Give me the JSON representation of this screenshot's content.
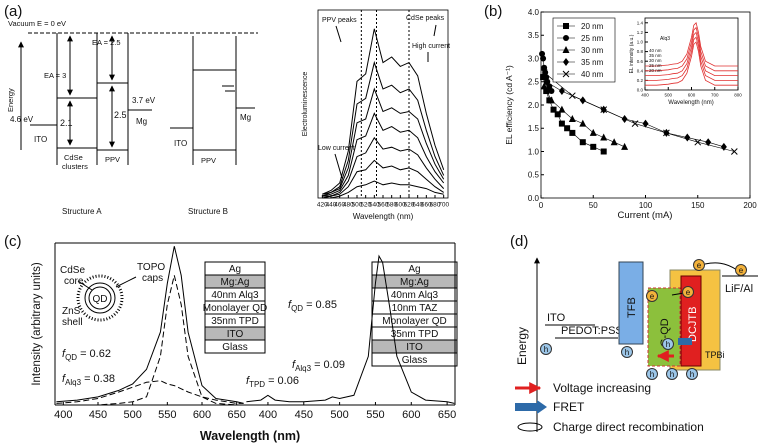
{
  "figure_labels": [
    "(a)",
    "(b)",
    "(c)",
    "(d)"
  ],
  "structure_a": {
    "energy": "Energy",
    "vacuum": "Vacuum E = 0 eV",
    "ea_cdse": "EA = 3",
    "ea_ppv": "EA = 2.5",
    "ito": "ITO",
    "ito_level": "4.6 eV",
    "gap_cdse": "2.1",
    "gap_ppv": "2.5",
    "mg": "Mg",
    "mg_level": "3.7 eV",
    "cdse": [
      "CdSe",
      "clusters"
    ],
    "ppv": "PPV",
    "caption": "Structure A"
  },
  "structure_b": {
    "ito": "ITO",
    "ppv": "PPV",
    "mg": "Mg",
    "caption": "Structure B"
  },
  "qd_schematic": {
    "core": [
      "CdSe",
      "core"
    ],
    "caps": [
      "TOPO",
      "caps"
    ],
    "shell": [
      "ZnS",
      "shell"
    ],
    "label": "QD"
  },
  "device_stacks": [
    [
      "Ag",
      "Mg:Ag",
      "40nm Alq3",
      "Monolayer QD",
      "35nm TPD",
      "ITO",
      "Glass"
    ],
    [
      "Ag",
      "Mg:Ag",
      "40nm Alq3",
      "10nm TAZ",
      "Monolayer QD",
      "35nm TPD",
      "ITO",
      "Glass"
    ]
  ],
  "panel_d": {
    "energy": "Energy",
    "ito": "ITO",
    "pedot": "PEDOT:PSS",
    "tfb": "TFB",
    "gqd": "G-QD",
    "dcjtb": "DCJTB",
    "tpbi": "TPBi",
    "lif": "LiF/Al",
    "electron": "e",
    "hole": "h",
    "legend": [
      "Voltage increasing",
      "FRET",
      "Charge direct recombination"
    ]
  },
  "chart_data": [
    {
      "type": "line",
      "x_label": "Wavelength (nm)",
      "y_label": "Electroluminescence",
      "xlim": [
        410,
        710
      ],
      "ylim": [
        0,
        100
      ],
      "xticks": [
        420,
        440,
        460,
        480,
        500,
        520,
        540,
        560,
        580,
        600,
        620,
        640,
        660,
        680,
        700
      ],
      "reference_lines": [
        510,
        545,
        620
      ],
      "annotations": [
        {
          "text": "PPV peaks"
        },
        {
          "text": "CdSe peaks"
        },
        {
          "text": "High current"
        },
        {
          "text": "Low current"
        }
      ],
      "x": [
        420,
        440,
        460,
        480,
        500,
        520,
        540,
        560,
        580,
        600,
        620,
        640,
        660,
        680,
        700
      ],
      "series": [
        {
          "color": "#000000",
          "values": [
            2,
            4,
            8,
            25,
            62,
            66,
            90,
            72,
            75,
            70,
            72,
            65,
            45,
            28,
            15
          ]
        },
        {
          "color": "#000000",
          "values": [
            2,
            3,
            6,
            20,
            50,
            53,
            72,
            58,
            60,
            56,
            58,
            52,
            36,
            22,
            12
          ]
        },
        {
          "color": "#000000",
          "values": [
            1,
            3,
            5,
            16,
            40,
            42,
            58,
            46,
            48,
            45,
            46,
            42,
            29,
            18,
            10
          ]
        },
        {
          "color": "#000000",
          "values": [
            1,
            2,
            4,
            12,
            31,
            33,
            45,
            36,
            38,
            35,
            36,
            32,
            22,
            14,
            8
          ]
        },
        {
          "color": "#000000",
          "values": [
            1,
            1,
            3,
            9,
            22,
            24,
            32,
            26,
            27,
            25,
            26,
            23,
            16,
            10,
            5
          ]
        },
        {
          "color": "#000000",
          "values": [
            0,
            1,
            2,
            6,
            14,
            15,
            20,
            16,
            17,
            15,
            16,
            14,
            10,
            6,
            3
          ]
        },
        {
          "color": "#000000",
          "values": [
            0,
            0,
            1,
            3,
            6,
            7,
            9,
            7,
            8,
            7,
            7,
            6,
            5,
            3,
            2
          ]
        }
      ]
    },
    {
      "type": "scatter",
      "x_label": "Current (mA)",
      "y_label": "EL efficiency (cd A⁻¹)",
      "xlim": [
        0,
        200
      ],
      "ylim": [
        0,
        4
      ],
      "xticks": [
        0,
        50,
        100,
        150,
        200
      ],
      "yticks": [
        {
          "value": 0,
          "label": "0.0"
        },
        0.5,
        {
          "value": 1,
          "label": "1.0"
        },
        1.5,
        {
          "value": 2,
          "label": "2.0"
        },
        2.5,
        {
          "value": 3,
          "label": "3.0"
        },
        3.5,
        {
          "value": 4,
          "label": "4.0"
        }
      ],
      "legend": "upper left",
      "connect": true,
      "series": [
        {
          "name": "20 nm",
          "marker": "square",
          "color": "#000000",
          "x": [
            2,
            5,
            8,
            12,
            16,
            20,
            25,
            30,
            40,
            50,
            60
          ],
          "values": [
            2.6,
            2.3,
            2.1,
            1.9,
            1.8,
            1.6,
            1.5,
            1.4,
            1.2,
            1.1,
            1.0
          ]
        },
        {
          "name": "25 nm",
          "marker": "circle",
          "color": "#000000",
          "x": [
            1,
            2,
            3,
            4,
            5,
            6,
            8,
            10
          ],
          "values": [
            3.1,
            3.0,
            2.8,
            2.7,
            2.6,
            2.5,
            2.4,
            2.3
          ]
        },
        {
          "name": "30 nm",
          "marker": "triangle",
          "color": "#000000",
          "x": [
            3,
            10,
            20,
            30,
            40,
            50,
            60,
            70,
            80
          ],
          "values": [
            2.4,
            2.1,
            1.9,
            1.7,
            1.6,
            1.4,
            1.3,
            1.2,
            1.1
          ]
        },
        {
          "name": "35 nm",
          "marker": "diamond",
          "color": "#000000",
          "x": [
            5,
            20,
            40,
            60,
            80,
            100,
            120,
            140,
            160,
            175
          ],
          "values": [
            2.5,
            2.3,
            2.1,
            1.9,
            1.7,
            1.6,
            1.4,
            1.3,
            1.2,
            1.1
          ]
        },
        {
          "name": "40 nm",
          "marker": "cross",
          "color": "#000000",
          "x": [
            3,
            30,
            60,
            90,
            120,
            150,
            185
          ],
          "values": [
            2.7,
            2.2,
            1.9,
            1.6,
            1.4,
            1.2,
            1.0
          ]
        }
      ]
    },
    {
      "type": "line",
      "x_label": "Wavelength (nm)",
      "y_label": "EL intensity (a.u.)",
      "xlim": [
        400,
        800
      ],
      "ylim": [
        0,
        1.5
      ],
      "xticks": [
        400,
        500,
        600,
        700,
        800
      ],
      "yticks": [
        {
          "value": 0,
          "label": "0.0"
        },
        0.2,
        0.4,
        0.6,
        0.8,
        {
          "value": 1,
          "label": "1.0"
        },
        1.2,
        1.4
      ],
      "legend": "left",
      "annotations": [
        {
          "text": "Alq3"
        }
      ],
      "x": [
        400,
        450,
        500,
        520,
        540,
        560,
        580,
        600,
        610,
        620,
        630,
        640,
        660,
        700,
        750,
        800
      ],
      "series": [
        {
          "name": "40 nm",
          "color": "#e03030",
          "values": [
            0.5,
            0.5,
            0.52,
            0.54,
            0.55,
            0.6,
            0.75,
            1.1,
            1.35,
            1.4,
            1.2,
            0.9,
            0.6,
            0.5,
            0.5,
            0.5
          ]
        },
        {
          "name": "35 nm",
          "color": "#e03030",
          "values": [
            0.4,
            0.4,
            0.42,
            0.44,
            0.45,
            0.5,
            0.65,
            1.0,
            1.25,
            1.3,
            1.1,
            0.8,
            0.5,
            0.4,
            0.4,
            0.4
          ]
        },
        {
          "name": "30 nm",
          "color": "#e03030",
          "values": [
            0.3,
            0.3,
            0.32,
            0.34,
            0.35,
            0.4,
            0.55,
            0.9,
            1.15,
            1.2,
            1.0,
            0.7,
            0.4,
            0.3,
            0.3,
            0.3
          ]
        },
        {
          "name": "25 nm",
          "color": "#e03030",
          "values": [
            0.2,
            0.2,
            0.22,
            0.24,
            0.25,
            0.3,
            0.45,
            0.8,
            1.05,
            1.1,
            0.9,
            0.6,
            0.3,
            0.2,
            0.2,
            0.2
          ]
        },
        {
          "name": "20 nm",
          "color": "#e03030",
          "values": [
            0.1,
            0.1,
            0.12,
            0.14,
            0.15,
            0.2,
            0.35,
            0.7,
            0.95,
            1.0,
            0.8,
            0.5,
            0.2,
            0.1,
            0.1,
            0.1
          ]
        }
      ]
    },
    {
      "type": "line",
      "x_label": "Wavelength (nm)",
      "y_label": "Intensity (arbitrary units)",
      "xlim": [
        388,
        662
      ],
      "ylim": [
        0,
        100
      ],
      "xticks": [
        400,
        450,
        500,
        550,
        600,
        650
      ],
      "annotations": [
        {
          "symbol": "f",
          "subscript": "QD",
          "text": "= 0.62"
        },
        {
          "symbol": "f",
          "subscript": "Alq3",
          "text": "= 0.38"
        }
      ],
      "x": [
        390,
        420,
        450,
        480,
        500,
        520,
        540,
        550,
        560,
        570,
        580,
        600,
        620,
        650,
        660
      ],
      "series": [
        {
          "color": "#000000",
          "dash": "solid",
          "values": [
            2,
            3,
            5,
            9,
            13,
            22,
            45,
            75,
            98,
            80,
            45,
            12,
            4,
            2,
            1
          ]
        },
        {
          "color": "#000000",
          "dash": "dashed",
          "values": [
            0,
            0,
            0,
            1,
            2,
            5,
            30,
            62,
            80,
            62,
            30,
            5,
            1,
            0,
            0
          ]
        },
        {
          "color": "#000000",
          "dash": "dashed",
          "values": [
            1,
            2,
            4,
            8,
            11,
            14,
            15,
            13,
            12,
            10,
            8,
            5,
            3,
            1,
            1
          ]
        }
      ]
    },
    {
      "type": "line",
      "xlim": [
        368,
        661
      ],
      "ylim": [
        0,
        100
      ],
      "xticks": [
        400,
        450,
        500,
        550,
        600,
        650
      ],
      "annotations": [
        {
          "symbol": "f",
          "subscript": "QD",
          "text": "= 0.85"
        },
        {
          "symbol": "f",
          "subscript": "Alq3",
          "text": "= 0.09"
        },
        {
          "symbol": "f",
          "subscript": "TPD",
          "text": "= 0.06"
        }
      ],
      "x": [
        370,
        390,
        400,
        410,
        430,
        450,
        480,
        490,
        500,
        520,
        540,
        550,
        555,
        560,
        570,
        580,
        600,
        620,
        650,
        660
      ],
      "series": [
        {
          "color": "#000000",
          "dash": "solid",
          "values": [
            2,
            3,
            6,
            3,
            2,
            2,
            3,
            5,
            4,
            6,
            30,
            75,
            92,
            88,
            60,
            30,
            8,
            3,
            2,
            1
          ]
        }
      ]
    }
  ]
}
